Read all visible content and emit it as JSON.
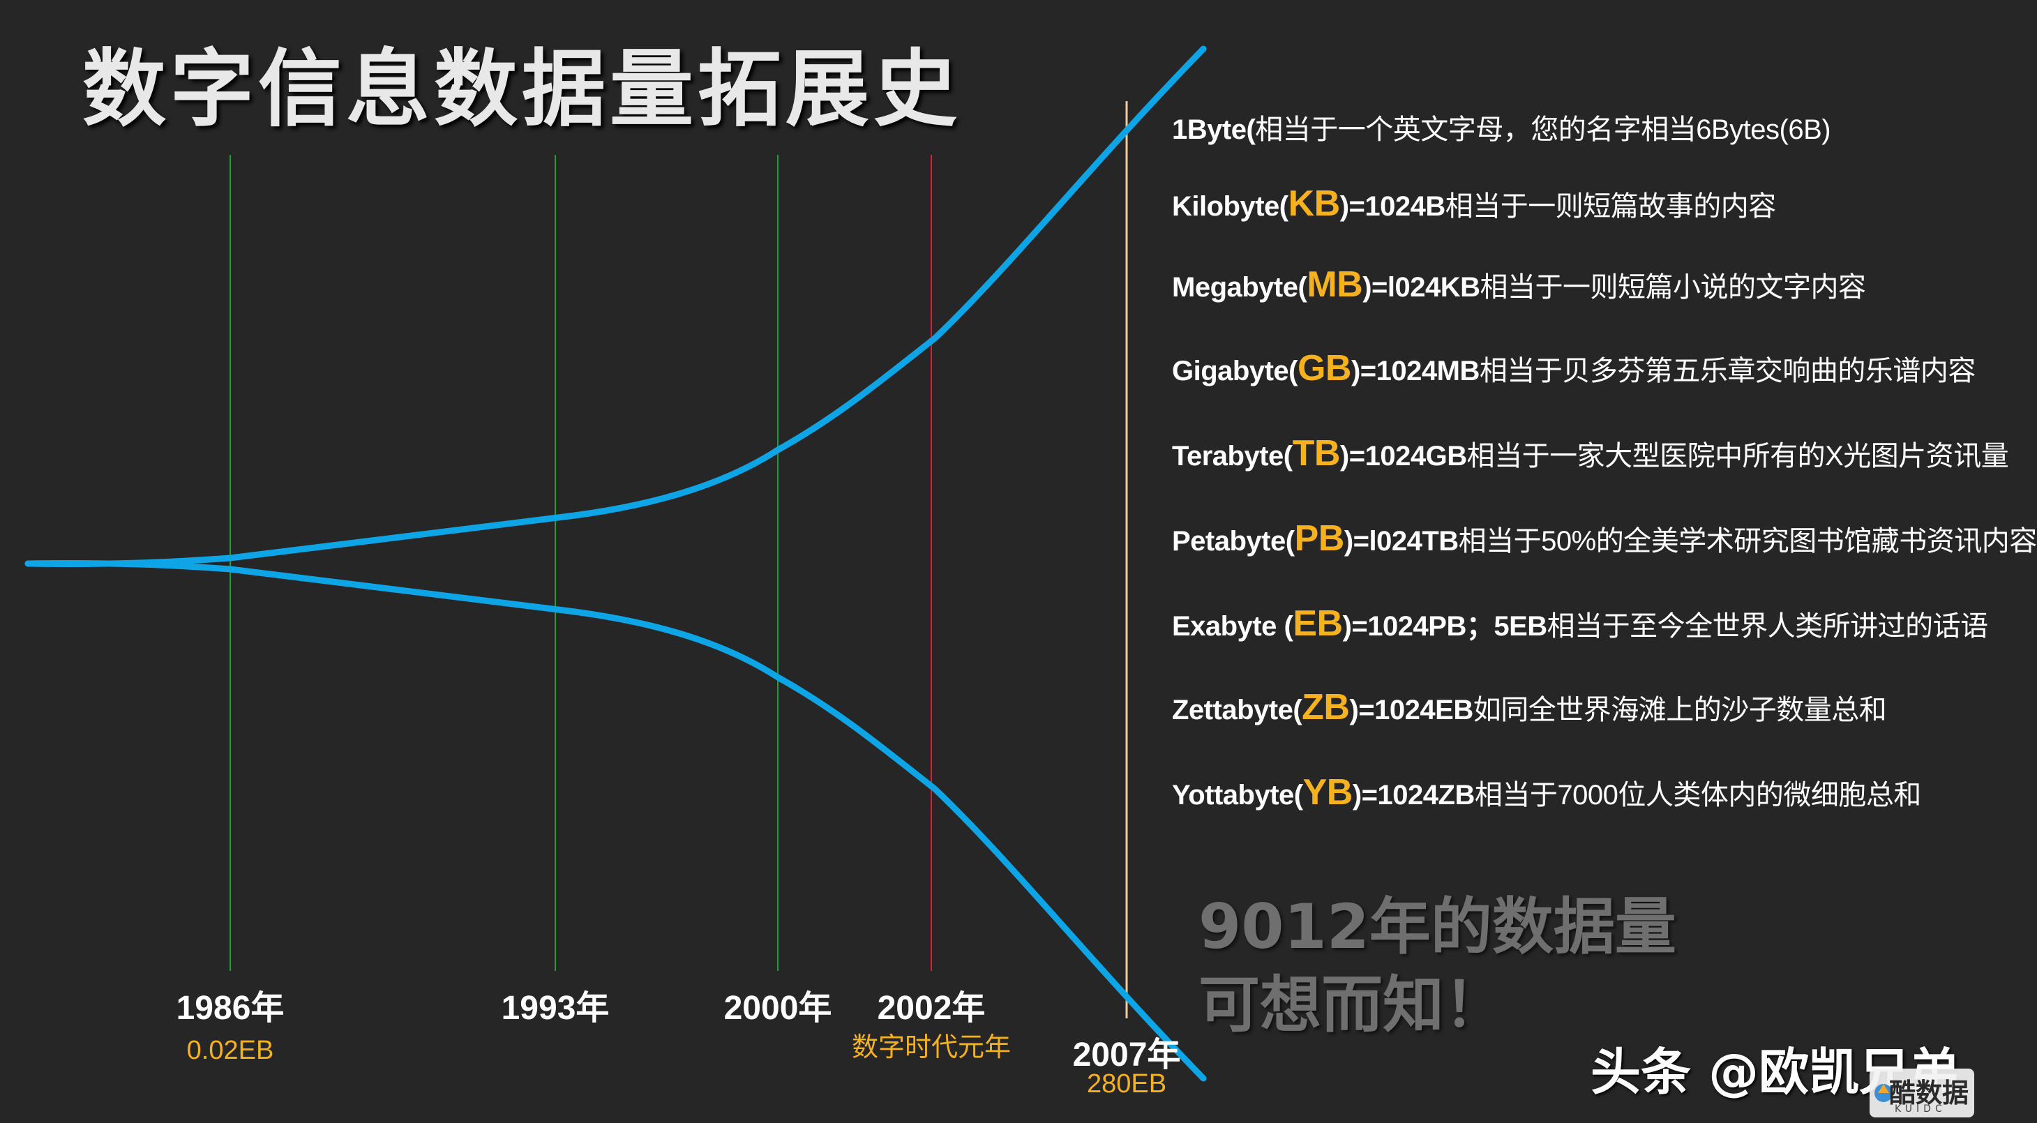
{
  "title": "数字信息数据量拓展史",
  "timeline": [
    {
      "year": "1986年",
      "sub": "0.02EB",
      "color": "#1e9e3a"
    },
    {
      "year": "1993年",
      "sub": "",
      "color": "#1e9e3a"
    },
    {
      "year": "2000年",
      "sub": "",
      "color": "#1e9e3a"
    },
    {
      "year": "2002年",
      "sub": "数字时代元年",
      "color": "#d8232a"
    },
    {
      "year": "2007年",
      "sub": "280EB",
      "color": "#f0c9a0"
    }
  ],
  "units": [
    {
      "en": "1Byte(",
      "abbr": "",
      "def": "",
      "cn": "相当于一个英文字母，您的名字相当6Bytes(6B)"
    },
    {
      "en": "Kilobyte(",
      "abbr": "KB",
      "def": ")=1024B",
      "cn": "相当于一则短篇故事的内容"
    },
    {
      "en": "Megabyte(",
      "abbr": "MB",
      "def": ")=l024KB",
      "cn": "相当于一则短篇小说的文字内容"
    },
    {
      "en": "Gigabyte(",
      "abbr": "GB",
      "def": ")=1024MB",
      "cn": "相当于贝多芬第五乐章交响曲的乐谱内容"
    },
    {
      "en": "Terabyte(",
      "abbr": "TB",
      "def": ")=1024GB",
      "cn": "相当于一家大型医院中所有的X光图片资讯量"
    },
    {
      "en": "Petabyte(",
      "abbr": "PB",
      "def": ")=l024TB",
      "cn": "相当于50%的全美学术研究图书馆藏书资讯内容"
    },
    {
      "en": "Exabyte (",
      "abbr": "EB",
      "def": ")=1024PB；5EB",
      "cn": "相当于至今全世界人类所讲过的话语"
    },
    {
      "en": "Zettabyte(",
      "abbr": "ZB",
      "def": ")=1024EB",
      "cn": "如同全世界海滩上的沙子数量总和"
    },
    {
      "en": "Yottabyte(",
      "abbr": "YB",
      "def": ")=1024ZB",
      "cn": "相当于7000位人类体内的微细胞总和"
    }
  ],
  "conclusion": [
    "9012年的数据量",
    "可想而知！"
  ],
  "watermark": "头条 @欧凯兄弟",
  "logo": {
    "text": "酷数据",
    "sub": "KUIDC"
  },
  "colors": {
    "curve": "#0ea5e6",
    "accent": "#f5b21e",
    "background": "#262626"
  }
}
